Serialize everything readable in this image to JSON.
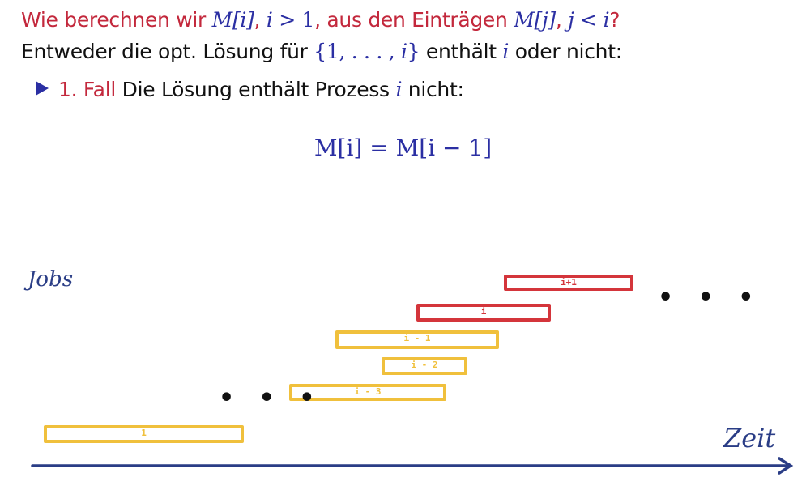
{
  "title": {
    "t1": "Wie berechnen wir ",
    "m1": "M[i]",
    "t2": ", ",
    "m2": "i",
    "t3": " > 1",
    "t4": ", aus den Einträgen ",
    "m3": "M[j]",
    "t5": ", ",
    "m4": "j",
    "t6": " < ",
    "m5": "i",
    "t7": "?"
  },
  "line2": {
    "t1": "Entweder die opt. Lösung für ",
    "set_open": "{1, . . . , ",
    "set_i": "i",
    "set_close": "}",
    "t2": " enthält ",
    "m1": "i",
    "t3": " oder nicht:"
  },
  "bullet": {
    "icon": "triangle-bullet-icon",
    "case": "1. Fall",
    "t1": " Die Lösung enthält Prozess ",
    "m1": "i",
    "t2": " nicht:"
  },
  "formula": "M[i] = M[i − 1]",
  "diagram": {
    "ylabel": "Jobs",
    "xlabel": "Zeit",
    "dots": "• • •",
    "jobs": [
      {
        "label": "i+1",
        "color": "#d4353b"
      },
      {
        "label": "i",
        "color": "#d4353b"
      },
      {
        "label": "i - 1",
        "color": "#f0c03c"
      },
      {
        "label": "i - 2",
        "color": "#f0c03c"
      },
      {
        "label": "i - 3",
        "color": "#f0c03c"
      },
      {
        "label": "1",
        "color": "#f0c03c"
      }
    ]
  },
  "colors": {
    "red": "#c3283c",
    "blue": "#2b2fa3",
    "axis": "#2a3d86"
  }
}
